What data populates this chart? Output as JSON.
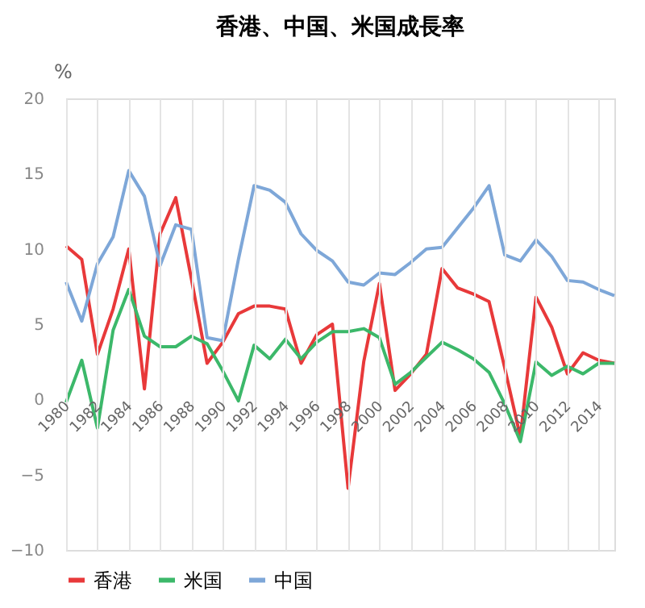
{
  "chart_data": {
    "type": "line",
    "title": "香港、中国、米国成長率",
    "ylabel": "%",
    "x": [
      1980,
      1981,
      1982,
      1983,
      1984,
      1985,
      1986,
      1987,
      1988,
      1989,
      1990,
      1991,
      1992,
      1993,
      1994,
      1995,
      1996,
      1997,
      1998,
      1999,
      2000,
      2001,
      2002,
      2003,
      2004,
      2005,
      2006,
      2007,
      2008,
      2009,
      2010,
      2011,
      2012,
      2013,
      2014,
      2015
    ],
    "series": [
      {
        "name": "香港",
        "color": "#e8393a",
        "values": [
          10.2,
          9.3,
          3.0,
          6.0,
          10.0,
          0.7,
          11.0,
          13.4,
          8.0,
          2.4,
          3.8,
          5.7,
          6.2,
          6.2,
          6.0,
          2.4,
          4.3,
          5.0,
          -5.9,
          2.5,
          7.7,
          0.6,
          1.7,
          3.0,
          8.7,
          7.4,
          7.0,
          6.5,
          2.1,
          -2.5,
          6.8,
          4.8,
          1.7,
          3.1,
          2.6,
          2.4
        ]
      },
      {
        "name": "米国",
        "color": "#3cb86a",
        "values": [
          -0.2,
          2.6,
          -1.9,
          4.6,
          7.3,
          4.2,
          3.5,
          3.5,
          4.2,
          3.7,
          1.9,
          -0.1,
          3.6,
          2.7,
          4.0,
          2.7,
          3.8,
          4.5,
          4.5,
          4.7,
          4.1,
          1.0,
          1.8,
          2.8,
          3.8,
          3.3,
          2.7,
          1.8,
          -0.3,
          -2.8,
          2.5,
          1.6,
          2.2,
          1.7,
          2.4,
          2.4
        ]
      },
      {
        "name": "中国",
        "color": "#7ea7d8",
        "values": [
          7.8,
          5.2,
          9.0,
          10.8,
          15.2,
          13.5,
          8.9,
          11.6,
          11.3,
          4.1,
          3.9,
          9.3,
          14.2,
          13.9,
          13.1,
          11.0,
          9.9,
          9.2,
          7.8,
          7.6,
          8.4,
          8.3,
          9.1,
          10.0,
          10.1,
          11.4,
          12.7,
          14.2,
          9.6,
          9.2,
          10.6,
          9.5,
          7.9,
          7.8,
          7.3,
          6.9
        ]
      }
    ],
    "xlim": [
      1980,
      2015
    ],
    "xticks": [
      1980,
      1982,
      1984,
      1986,
      1988,
      1990,
      1992,
      1994,
      1996,
      1998,
      2000,
      2002,
      2004,
      2006,
      2008,
      2010,
      2012,
      2014
    ],
    "ylim": [
      -10,
      20
    ],
    "yticks": [
      -10,
      -5,
      0,
      5,
      10,
      15,
      20
    ],
    "grid": "x",
    "legend": "bottom",
    "marker": "none",
    "line_style": "solid"
  }
}
